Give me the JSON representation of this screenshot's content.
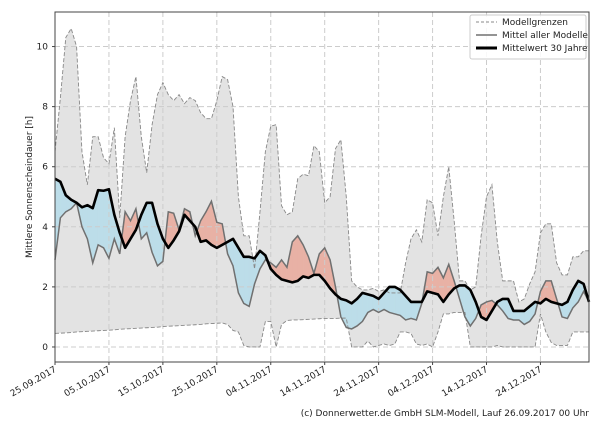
{
  "chart_data": {
    "type": "line",
    "ylabel": "Mittlere Sonnenscheindauer [h]",
    "xlabel": "",
    "ylim": [
      -0.5,
      11.15
    ],
    "xlim_days": [
      0,
      99
    ],
    "start_date": "25.09.2017",
    "xtick_labels": [
      "25.09.2017",
      "05.10.2017",
      "15.10.2017",
      "25.10.2017",
      "04.11.2017",
      "14.11.2017",
      "24.11.2017",
      "04.12.2017",
      "14.12.2017",
      "24.12.2017"
    ],
    "xtick_days": [
      0,
      10,
      20,
      30,
      40,
      50,
      60,
      70,
      80,
      90
    ],
    "yticks": [
      0,
      2,
      4,
      6,
      8,
      10
    ],
    "ytick_labels": [
      "0",
      "2",
      "4",
      "6",
      "8",
      "10"
    ],
    "grid": true,
    "legend_position": "top-right",
    "legend": [
      "Modellgrenzen",
      "Mittel aller Modelle",
      "Mittelwert 30 Jahre"
    ],
    "series": [
      {
        "name": "Modellgrenzen (oben)",
        "values": [
          6.5,
          8.3,
          10.3,
          10.6,
          10.0,
          6.5,
          5.4,
          7.0,
          7.0,
          6.3,
          6.1,
          7.3,
          4.3,
          7.0,
          8.2,
          9.0,
          7.0,
          5.8,
          7.4,
          8.4,
          8.8,
          8.4,
          8.2,
          8.4,
          8.1,
          8.3,
          8.2,
          7.8,
          7.6,
          7.6,
          8.2,
          9.0,
          8.9,
          8.0,
          5.0,
          3.7,
          3.7,
          2.6,
          4.5,
          6.5,
          7.35,
          7.4,
          4.7,
          4.4,
          4.5,
          5.6,
          5.75,
          5.7,
          6.7,
          6.5,
          4.8,
          5.0,
          6.6,
          6.9,
          5.0,
          2.2,
          2.0,
          1.9,
          1.9,
          1.95,
          1.85,
          1.9,
          1.8,
          1.8,
          1.8,
          2.8,
          3.6,
          3.9,
          3.5,
          4.9,
          4.8,
          3.7,
          5.0,
          6.0,
          4.2,
          2.2,
          2.2,
          1.9,
          2.0,
          3.7,
          5.0,
          5.4,
          3.5,
          2.2,
          2.2,
          2.2,
          1.5,
          1.6,
          2.1,
          2.5,
          3.8,
          4.1,
          4.1,
          2.8,
          2.4,
          2.4,
          3.0,
          3.0,
          3.2,
          3.2
        ]
      },
      {
        "name": "Modellgrenzen (unten)",
        "values": [
          0.45,
          0.46,
          0.47,
          0.48,
          0.5,
          0.51,
          0.52,
          0.53,
          0.54,
          0.55,
          0.56,
          0.57,
          0.59,
          0.6,
          0.61,
          0.62,
          0.63,
          0.64,
          0.65,
          0.66,
          0.68,
          0.69,
          0.7,
          0.71,
          0.72,
          0.73,
          0.74,
          0.75,
          0.77,
          0.78,
          0.79,
          0.8,
          0.75,
          0.55,
          0.5,
          0.05,
          0,
          0,
          0,
          0.85,
          0.85,
          0,
          0.75,
          0.88,
          0.9,
          0.9,
          0.91,
          0.92,
          0.93,
          0.94,
          0.95,
          0.95,
          0.95,
          0.96,
          0.96,
          0,
          0,
          0,
          0.2,
          0,
          0.05,
          0.1,
          0.05,
          0.1,
          0.5,
          0.5,
          0.45,
          0.1,
          0.05,
          0.1,
          0,
          0.5,
          1.1,
          1.1,
          1.15,
          1.15,
          1.15,
          0,
          0,
          0,
          0,
          0,
          0.05,
          0,
          0,
          0,
          0,
          0,
          0,
          0,
          1.1,
          0.5,
          0.15,
          0.05,
          0.05,
          0.05,
          0.5,
          0.5,
          0.5,
          0.5
        ]
      },
      {
        "name": "Mittel aller Modelle",
        "values": [
          2.9,
          4.3,
          4.5,
          4.6,
          4.8,
          4.0,
          3.6,
          2.8,
          3.4,
          3.3,
          2.95,
          3.6,
          3.1,
          4.5,
          4.2,
          4.6,
          3.6,
          3.8,
          3.15,
          2.7,
          2.85,
          4.5,
          4.45,
          3.9,
          4.6,
          4.5,
          3.7,
          4.2,
          4.5,
          4.85,
          4.15,
          4.1,
          3.1,
          2.7,
          1.8,
          1.45,
          1.35,
          2.1,
          2.6,
          2.9,
          2.8,
          2.65,
          2.9,
          2.65,
          3.5,
          3.7,
          3.4,
          3.0,
          2.45,
          3.1,
          3.3,
          2.9,
          2.0,
          1.0,
          0.65,
          0.6,
          0.7,
          0.85,
          1.15,
          1.25,
          1.15,
          1.25,
          1.15,
          1.1,
          1.05,
          0.9,
          0.95,
          0.9,
          1.45,
          2.5,
          2.45,
          2.65,
          2.3,
          2.75,
          2.2,
          1.6,
          1.0,
          0.7,
          0.95,
          1.4,
          1.5,
          1.55,
          1.4,
          1.2,
          0.95,
          0.9,
          0.9,
          0.75,
          0.85,
          1.1,
          1.85,
          2.2,
          2.2,
          1.6,
          1.0,
          0.95,
          1.3,
          1.5,
          1.85,
          1.5
        ]
      },
      {
        "name": "Mittelwert 30 Jahre",
        "values": [
          5.6,
          5.5,
          5.05,
          4.9,
          4.8,
          4.65,
          4.72,
          4.62,
          5.22,
          5.2,
          5.25,
          4.4,
          3.8,
          3.3,
          3.6,
          3.9,
          4.4,
          4.8,
          4.8,
          4.1,
          3.6,
          3.3,
          3.55,
          3.85,
          4.4,
          4.2,
          4.0,
          3.5,
          3.55,
          3.4,
          3.3,
          3.4,
          3.5,
          3.6,
          3.3,
          3.0,
          3.0,
          2.95,
          3.2,
          3.05,
          2.6,
          2.4,
          2.25,
          2.2,
          2.15,
          2.2,
          2.35,
          2.3,
          2.4,
          2.4,
          2.2,
          1.95,
          1.75,
          1.6,
          1.55,
          1.45,
          1.6,
          1.8,
          1.75,
          1.7,
          1.6,
          1.8,
          2.0,
          2.0,
          1.9,
          1.7,
          1.5,
          1.5,
          1.5,
          1.85,
          1.8,
          1.75,
          1.5,
          1.75,
          1.95,
          2.05,
          2.05,
          1.9,
          1.5,
          1.0,
          0.9,
          1.2,
          1.5,
          1.6,
          1.6,
          1.2,
          1.2,
          1.2,
          1.35,
          1.5,
          1.45,
          1.6,
          1.5,
          1.45,
          1.4,
          1.5,
          1.9,
          2.2,
          2.1,
          1.5
        ]
      }
    ],
    "colors": {
      "band": "#e3e3e3",
      "bound": "#888888",
      "model_mean": "#707070",
      "mean30": "#000000",
      "above": "#e8b1a5",
      "below": "#bcdde9",
      "grid": "#cccccc"
    }
  },
  "footer": "(c) Donnerwetter.de GmbH SLM-Modell, Lauf 26.09.2017 00 Uhr"
}
